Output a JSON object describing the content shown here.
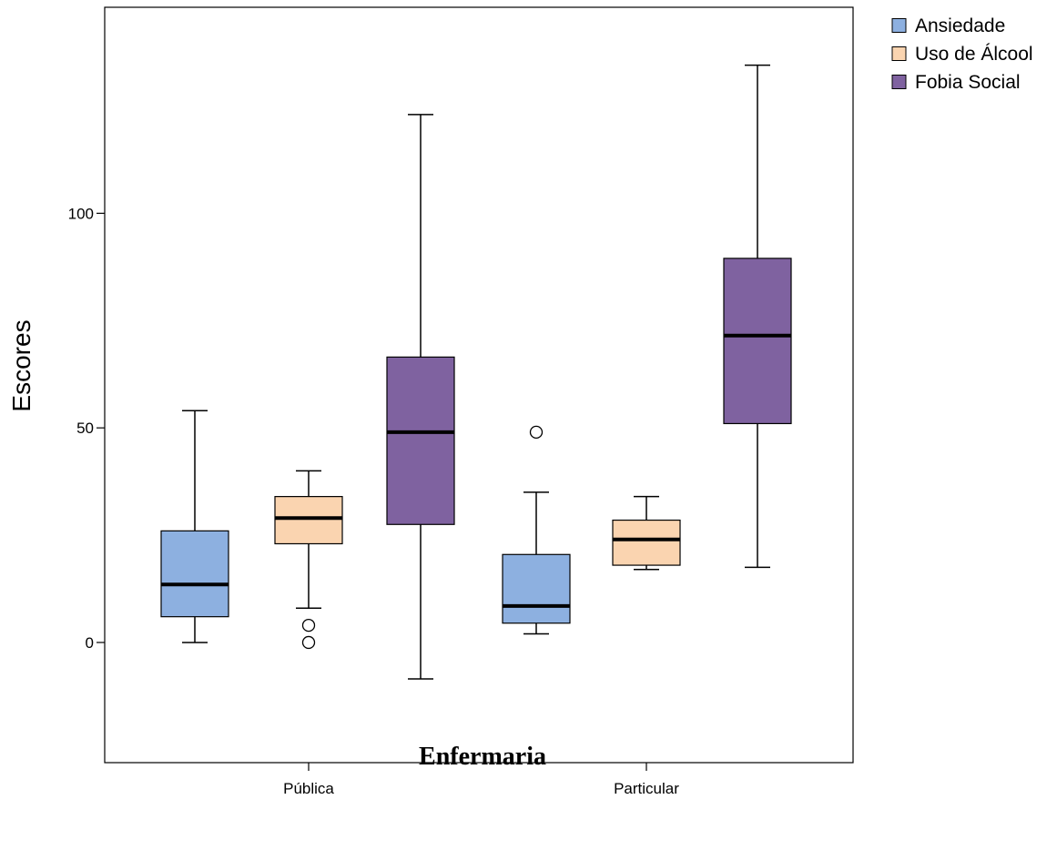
{
  "chart_data": {
    "type": "boxplot",
    "xlabel": "Enfermaria",
    "ylabel": "Escores",
    "ylim": [
      -28,
      148
    ],
    "y_ticks": [
      0,
      50,
      100
    ],
    "categories": [
      "Pública",
      "Particular"
    ],
    "grid": false,
    "legend_position": "top-right",
    "series": [
      {
        "name": "Ansiedade",
        "color": "#8db0e0",
        "boxes": [
          {
            "category": "Pública",
            "whisker_low": 0,
            "q1": 6,
            "median": 13.5,
            "q3": 26,
            "whisker_high": 54,
            "outliers": []
          },
          {
            "category": "Particular",
            "whisker_low": 2,
            "q1": 4.5,
            "median": 8.5,
            "q3": 20.5,
            "whisker_high": 35,
            "outliers": [
              49
            ]
          }
        ]
      },
      {
        "name": "Uso de Álcool",
        "color": "#fad4b0",
        "boxes": [
          {
            "category": "Pública",
            "whisker_low": 8,
            "q1": 23,
            "median": 29,
            "q3": 34,
            "whisker_high": 40,
            "outliers": [
              4,
              0
            ]
          },
          {
            "category": "Particular",
            "whisker_low": 17,
            "q1": 18,
            "median": 24,
            "q3": 28.5,
            "whisker_high": 34,
            "outliers": []
          }
        ]
      },
      {
        "name": "Fobia Social",
        "color": "#7f62a0",
        "boxes": [
          {
            "category": "Pública",
            "whisker_low": -8.5,
            "q1": 27.5,
            "median": 49,
            "q3": 66.5,
            "whisker_high": 123,
            "outliers": []
          },
          {
            "category": "Particular",
            "whisker_low": 17.5,
            "q1": 51,
            "median": 71.5,
            "q3": 89.5,
            "whisker_high": 134.5,
            "outliers": []
          }
        ]
      }
    ]
  }
}
